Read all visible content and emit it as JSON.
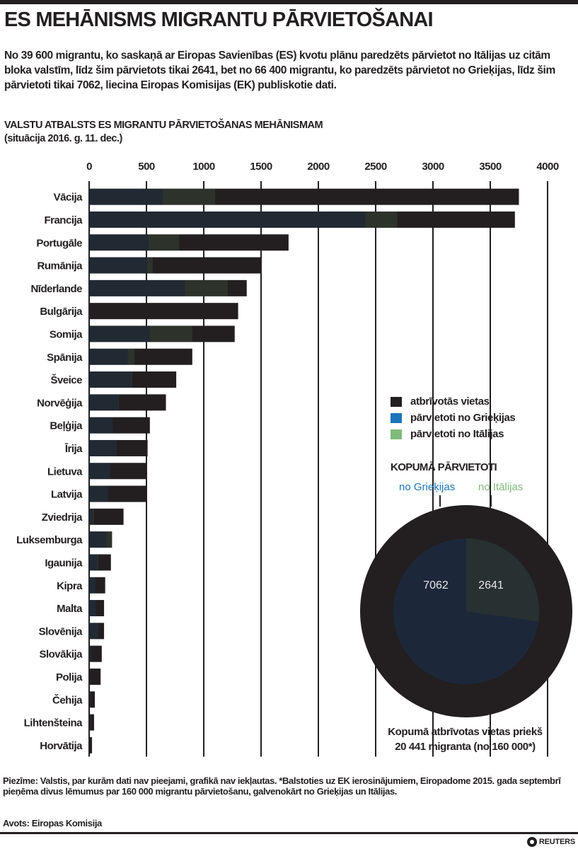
{
  "header": {
    "title": "ES MEHĀNISMS MIGRANTU PĀRVIETOŠANAI",
    "intro": "No 39 600 migrantu, ko saskaņā ar Eiropas Savienības (ES) kvotu plānu paredzēts pārvietot no Itālijas uz citām bloka valstīm, līdz šim pārvietots tikai 2641, bet no 66 400 migrantu, ko paredzēts pārvietot no Grieķijas, līdz šim pārvietoti tikai 7062, liecina Eiropas Komisijas (EK) publiskotie dati."
  },
  "legend": {
    "items": [
      {
        "label": "atbrīvotās vietas",
        "color": "#231f20"
      },
      {
        "label": "pārvietoti no Grieķijas",
        "color": "#1b75bb"
      },
      {
        "label": "pārvietoti no Itālijas",
        "color": "#7fba7a"
      }
    ]
  },
  "chart_data": [
    {
      "type": "bar",
      "orientation": "horizontal",
      "stacking": "overlay",
      "title": "VALSTU ATBALSTS ES MIGRANTU PĀRVIETOŠANAS MEHĀNISMAM",
      "subtitle": "(situācija 2016. g. 11. dec.)",
      "xlim": [
        0,
        4000
      ],
      "xticks": [
        "0",
        "500",
        "1000",
        "1500",
        "2000",
        "2500",
        "3000",
        "3500",
        "4000"
      ],
      "grid": true,
      "categories": [
        "Vācija",
        "Francija",
        "Portugāle",
        "Rumānija",
        "Nīderlande",
        "Bulgārija",
        "Somija",
        "Spānija",
        "Šveice",
        "Norvēģija",
        "Beļģija",
        "Īrija",
        "Lietuva",
        "Latvija",
        "Zviedrija",
        "Luksemburga",
        "Igaunija",
        "Kipra",
        "Malta",
        "Slovēnija",
        "Slovākija",
        "Polija",
        "Čehija",
        "Lihtenšteina",
        "Horvātija"
      ],
      "series": [
        {
          "name": "atbrīvotās vietas",
          "color": "#231f20",
          "values": [
            3750,
            3715,
            1740,
            1500,
            1375,
            1300,
            1270,
            900,
            760,
            670,
            530,
            510,
            505,
            505,
            300,
            200,
            190,
            140,
            130,
            130,
            110,
            100,
            50,
            43,
            25
          ]
        },
        {
          "name": "pārvietoti no Grieķijas",
          "color": "#1b75bb",
          "values": [
            640,
            2410,
            520,
            505,
            835,
            6,
            530,
            335,
            365,
            255,
            206,
            240,
            185,
            165,
            30,
            150,
            70,
            55,
            60,
            80,
            16,
            6,
            12,
            10,
            0
          ]
        },
        {
          "name": "pārvietoti no Itālijas",
          "color": "#7fba7a",
          "values": [
            460,
            280,
            265,
            50,
            375,
            0,
            370,
            60,
            10,
            5,
            0,
            0,
            0,
            0,
            10,
            50,
            10,
            0,
            0,
            0,
            0,
            0,
            0,
            0,
            0
          ]
        }
      ]
    },
    {
      "type": "pie",
      "title": "KOPUMĀ PĀRVIETOTI",
      "labels": [
        "no Grieķijas",
        "no Itālijas"
      ],
      "values": [
        7062,
        2641
      ],
      "value_labels": [
        "7062",
        "2641"
      ],
      "outer_total": 20441,
      "colors": [
        "#1b75bb",
        "#7fba7a"
      ],
      "outer_color": "#231f20",
      "caption_line1": "Kopumā atbrīvotas vietas priekš",
      "caption_line2": "20 441 migranta (no 160 000*)"
    }
  ],
  "footer": {
    "note": "Piezīme: Valstis, par kurām dati nav pieejami, grafikā nav iekļautas. *Balstoties uz EK ierosinājumiem, Eiropadome 2015. gada septembrī pieņēma divus lēmumus par 160 000 migrantu pārvietošanu, galvenokārt no Grieķijas un Itālijas.",
    "source": "Avots: Eiropas Komisija",
    "logo": "REUTERS"
  }
}
